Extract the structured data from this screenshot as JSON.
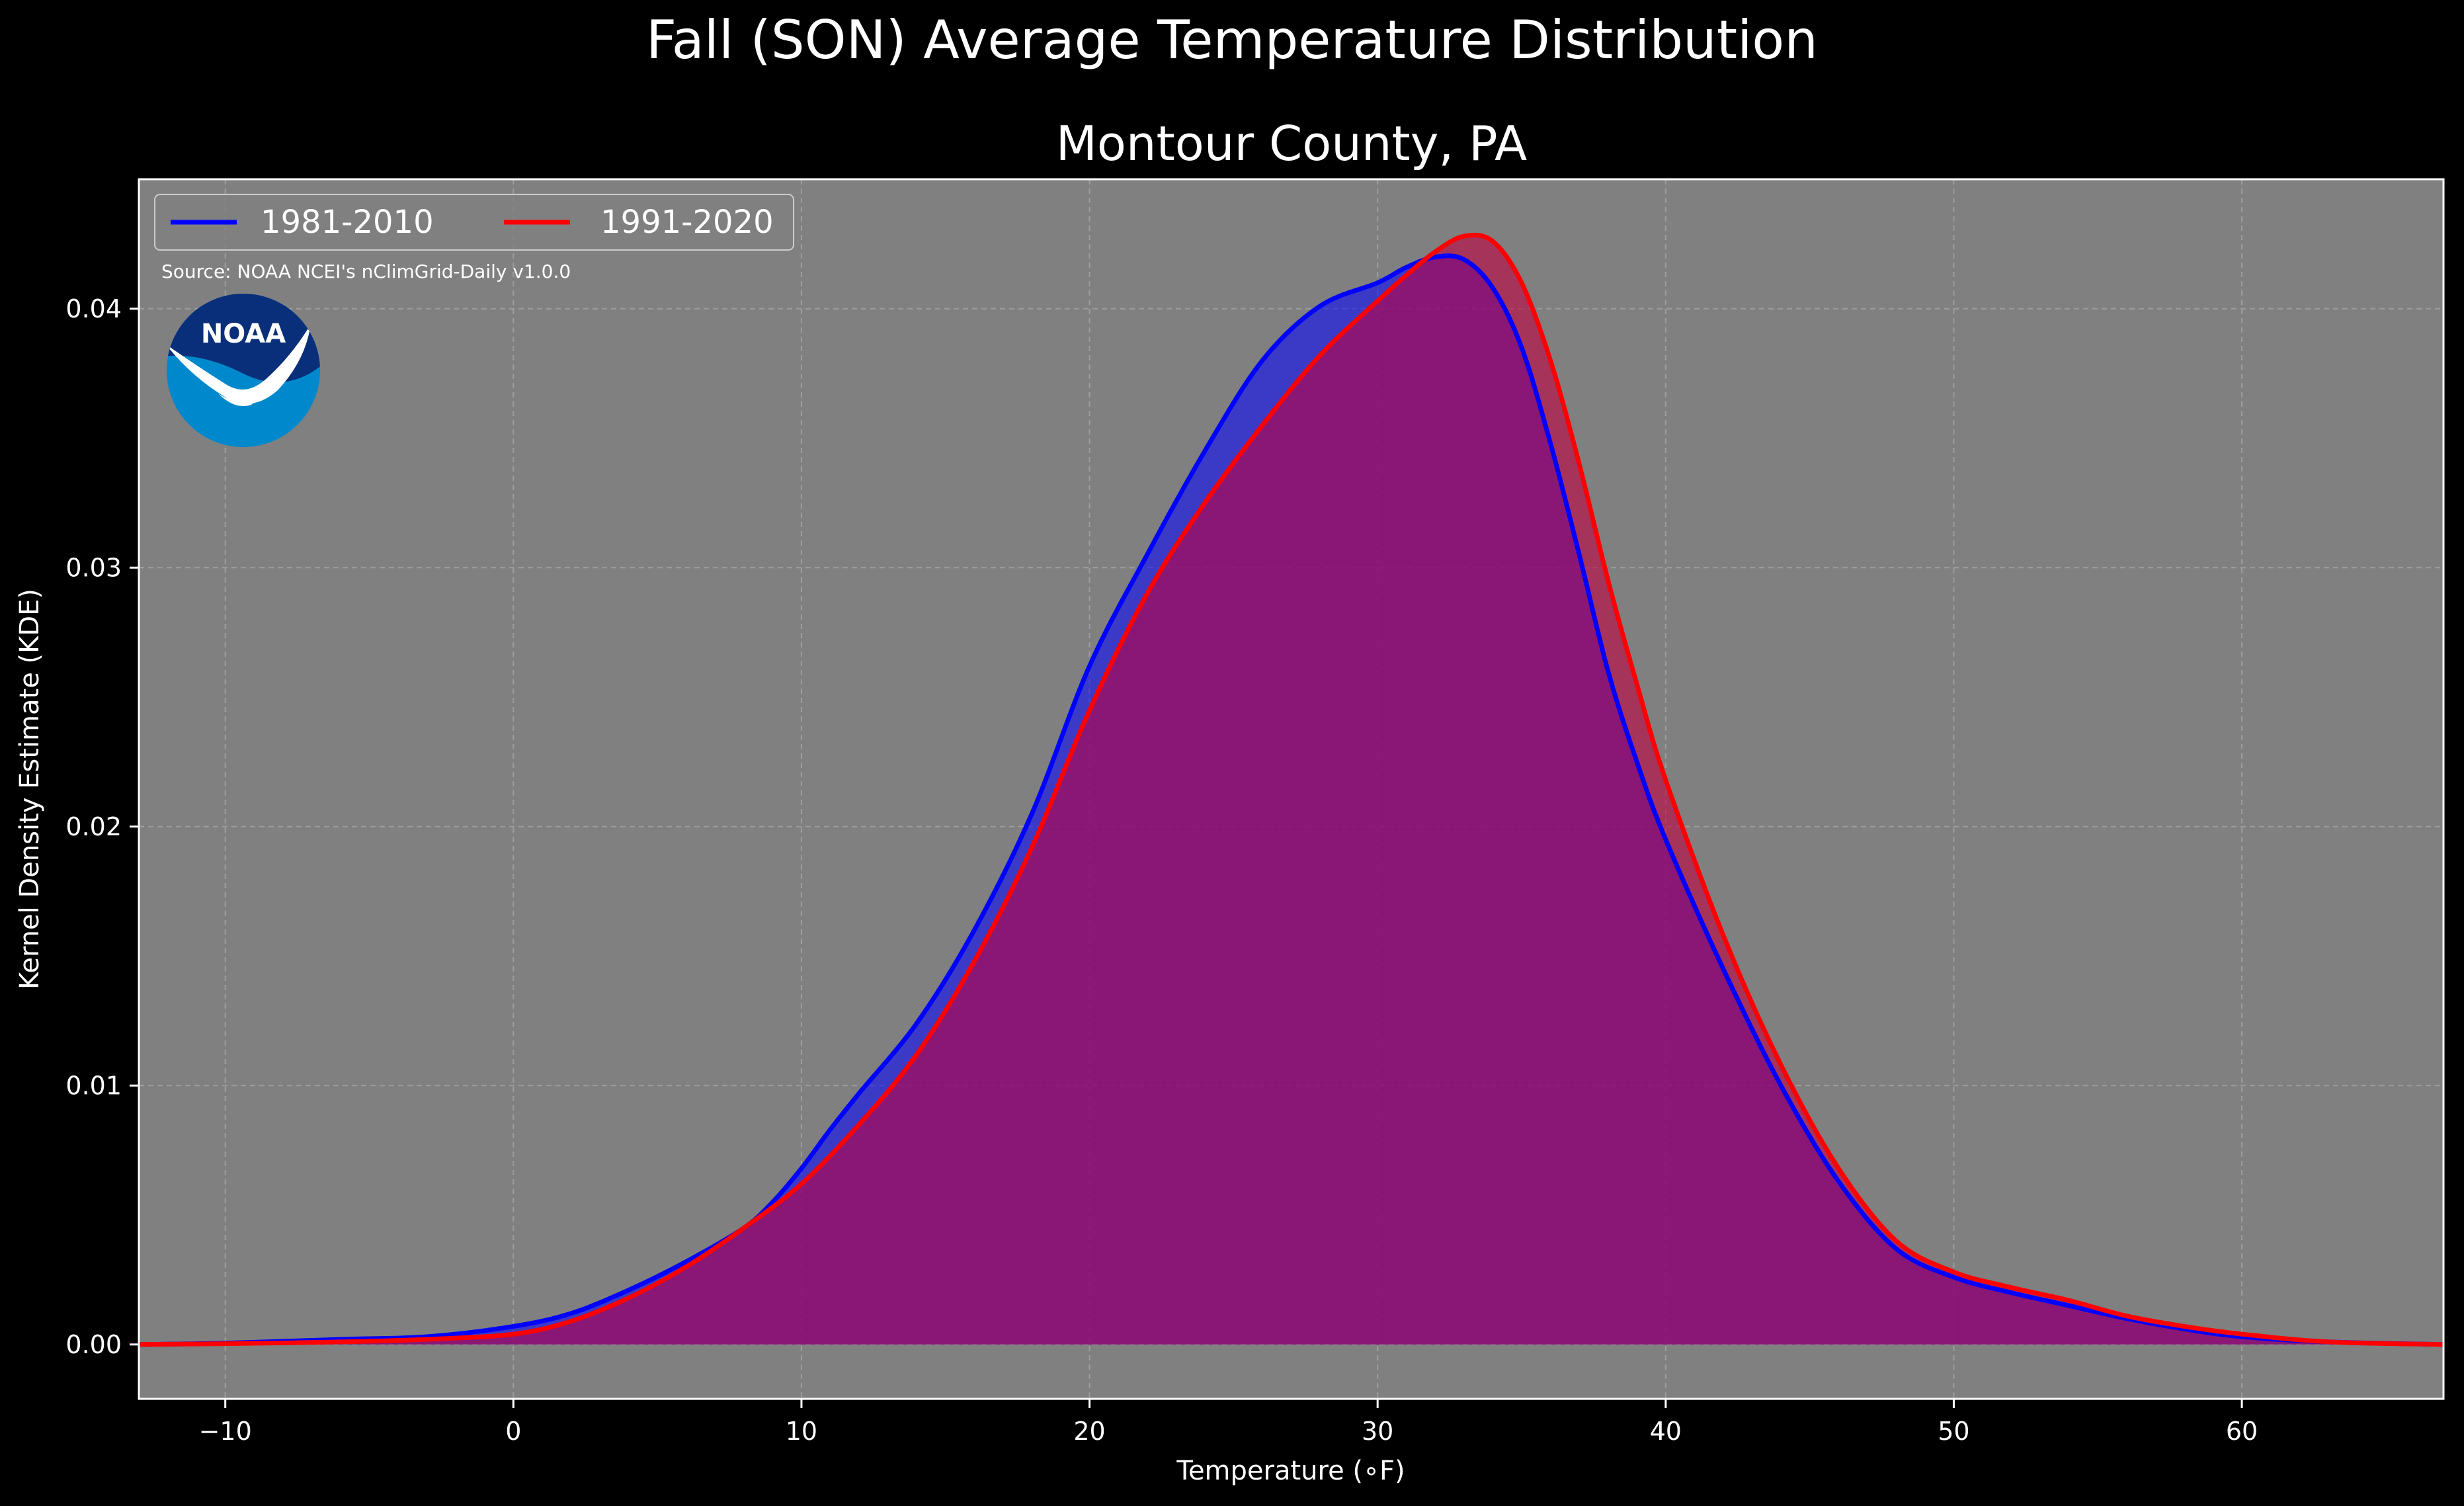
{
  "chart_data": {
    "type": "area",
    "suptitle": "Fall (SON) Average Temperature Distribution",
    "title": "Montour County, PA",
    "xlabel": "Temperature ($^\\circ$F)",
    "xlabel_display": "Temperature (∘F)",
    "ylabel": "Kernel Density Estimate (KDE)",
    "xlim": [
      -13,
      67
    ],
    "ylim": [
      -0.0021,
      0.045
    ],
    "xticks": [
      -10,
      0,
      10,
      20,
      30,
      40,
      50,
      60
    ],
    "xtick_labels": [
      "−10",
      "0",
      "10",
      "20",
      "30",
      "40",
      "50",
      "60"
    ],
    "yticks": [
      0.0,
      0.01,
      0.02,
      0.03,
      0.04
    ],
    "ytick_labels": [
      "0.00",
      "0.01",
      "0.02",
      "0.03",
      "0.04"
    ],
    "grid": true,
    "legend_position": "top-left",
    "source_note": "Source: NOAA NCEI's nClimGrid-Daily v1.0.0",
    "logo_text": "NOAA",
    "colors": {
      "background": "#000000",
      "plot_background": "#808080",
      "series_1": "#0000ff",
      "series_2": "#ff0000",
      "fill_1": "#0000ff",
      "fill_2": "#c00040",
      "logo_outer": "#0088cc",
      "logo_inner": "#0a2f7a"
    },
    "series": [
      {
        "name": "1981-2010",
        "color": "#0000ff",
        "points": [
          [
            -13,
            0.0
          ],
          [
            -10,
            5e-05
          ],
          [
            -6,
            0.0002
          ],
          [
            -3,
            0.0003
          ],
          [
            0,
            0.0007
          ],
          [
            2,
            0.0012
          ],
          [
            4,
            0.0021
          ],
          [
            6,
            0.0032
          ],
          [
            8,
            0.0045
          ],
          [
            9,
            0.0055
          ],
          [
            10,
            0.0068
          ],
          [
            11,
            0.0083
          ],
          [
            12,
            0.0097
          ],
          [
            14,
            0.0124
          ],
          [
            16,
            0.016
          ],
          [
            18,
            0.0205
          ],
          [
            20,
            0.0262
          ],
          [
            22,
            0.0305
          ],
          [
            24,
            0.0345
          ],
          [
            26,
            0.038
          ],
          [
            28,
            0.0401
          ],
          [
            30,
            0.041
          ],
          [
            31,
            0.0416
          ],
          [
            32,
            0.042
          ],
          [
            33,
            0.0419
          ],
          [
            34,
            0.0408
          ],
          [
            35,
            0.0385
          ],
          [
            36,
            0.0348
          ],
          [
            37,
            0.0305
          ],
          [
            38,
            0.026
          ],
          [
            39,
            0.0225
          ],
          [
            40,
            0.0195
          ],
          [
            42,
            0.0145
          ],
          [
            44,
            0.01
          ],
          [
            46,
            0.0063
          ],
          [
            48,
            0.0037
          ],
          [
            50,
            0.0026
          ],
          [
            52,
            0.002
          ],
          [
            54,
            0.0015
          ],
          [
            56,
            0.001
          ],
          [
            58,
            0.0006
          ],
          [
            60,
            0.0003
          ],
          [
            63,
            0.0001
          ],
          [
            67,
            0.0
          ]
        ]
      },
      {
        "name": "1991-2020",
        "color": "#ff0000",
        "points": [
          [
            -13,
            0.0
          ],
          [
            -10,
            3e-05
          ],
          [
            -6,
            0.0001
          ],
          [
            -3,
            0.0002
          ],
          [
            0,
            0.0004
          ],
          [
            2,
            0.0009
          ],
          [
            4,
            0.0018
          ],
          [
            6,
            0.003
          ],
          [
            8,
            0.0045
          ],
          [
            10,
            0.0062
          ],
          [
            12,
            0.0085
          ],
          [
            14,
            0.0112
          ],
          [
            16,
            0.0148
          ],
          [
            18,
            0.0192
          ],
          [
            20,
            0.0245
          ],
          [
            22,
            0.029
          ],
          [
            24,
            0.0325
          ],
          [
            26,
            0.0355
          ],
          [
            28,
            0.0382
          ],
          [
            30,
            0.0403
          ],
          [
            31,
            0.0413
          ],
          [
            32,
            0.0422
          ],
          [
            33,
            0.0428
          ],
          [
            34,
            0.0426
          ],
          [
            35,
            0.041
          ],
          [
            36,
            0.038
          ],
          [
            37,
            0.034
          ],
          [
            38,
            0.0295
          ],
          [
            39,
            0.0255
          ],
          [
            40,
            0.0218
          ],
          [
            42,
            0.0158
          ],
          [
            44,
            0.0108
          ],
          [
            46,
            0.0068
          ],
          [
            48,
            0.004
          ],
          [
            50,
            0.0028
          ],
          [
            52,
            0.0022
          ],
          [
            54,
            0.0017
          ],
          [
            56,
            0.0011
          ],
          [
            58,
            0.0007
          ],
          [
            60,
            0.0004
          ],
          [
            63,
            0.0001
          ],
          [
            67,
            0.0
          ]
        ]
      }
    ]
  }
}
